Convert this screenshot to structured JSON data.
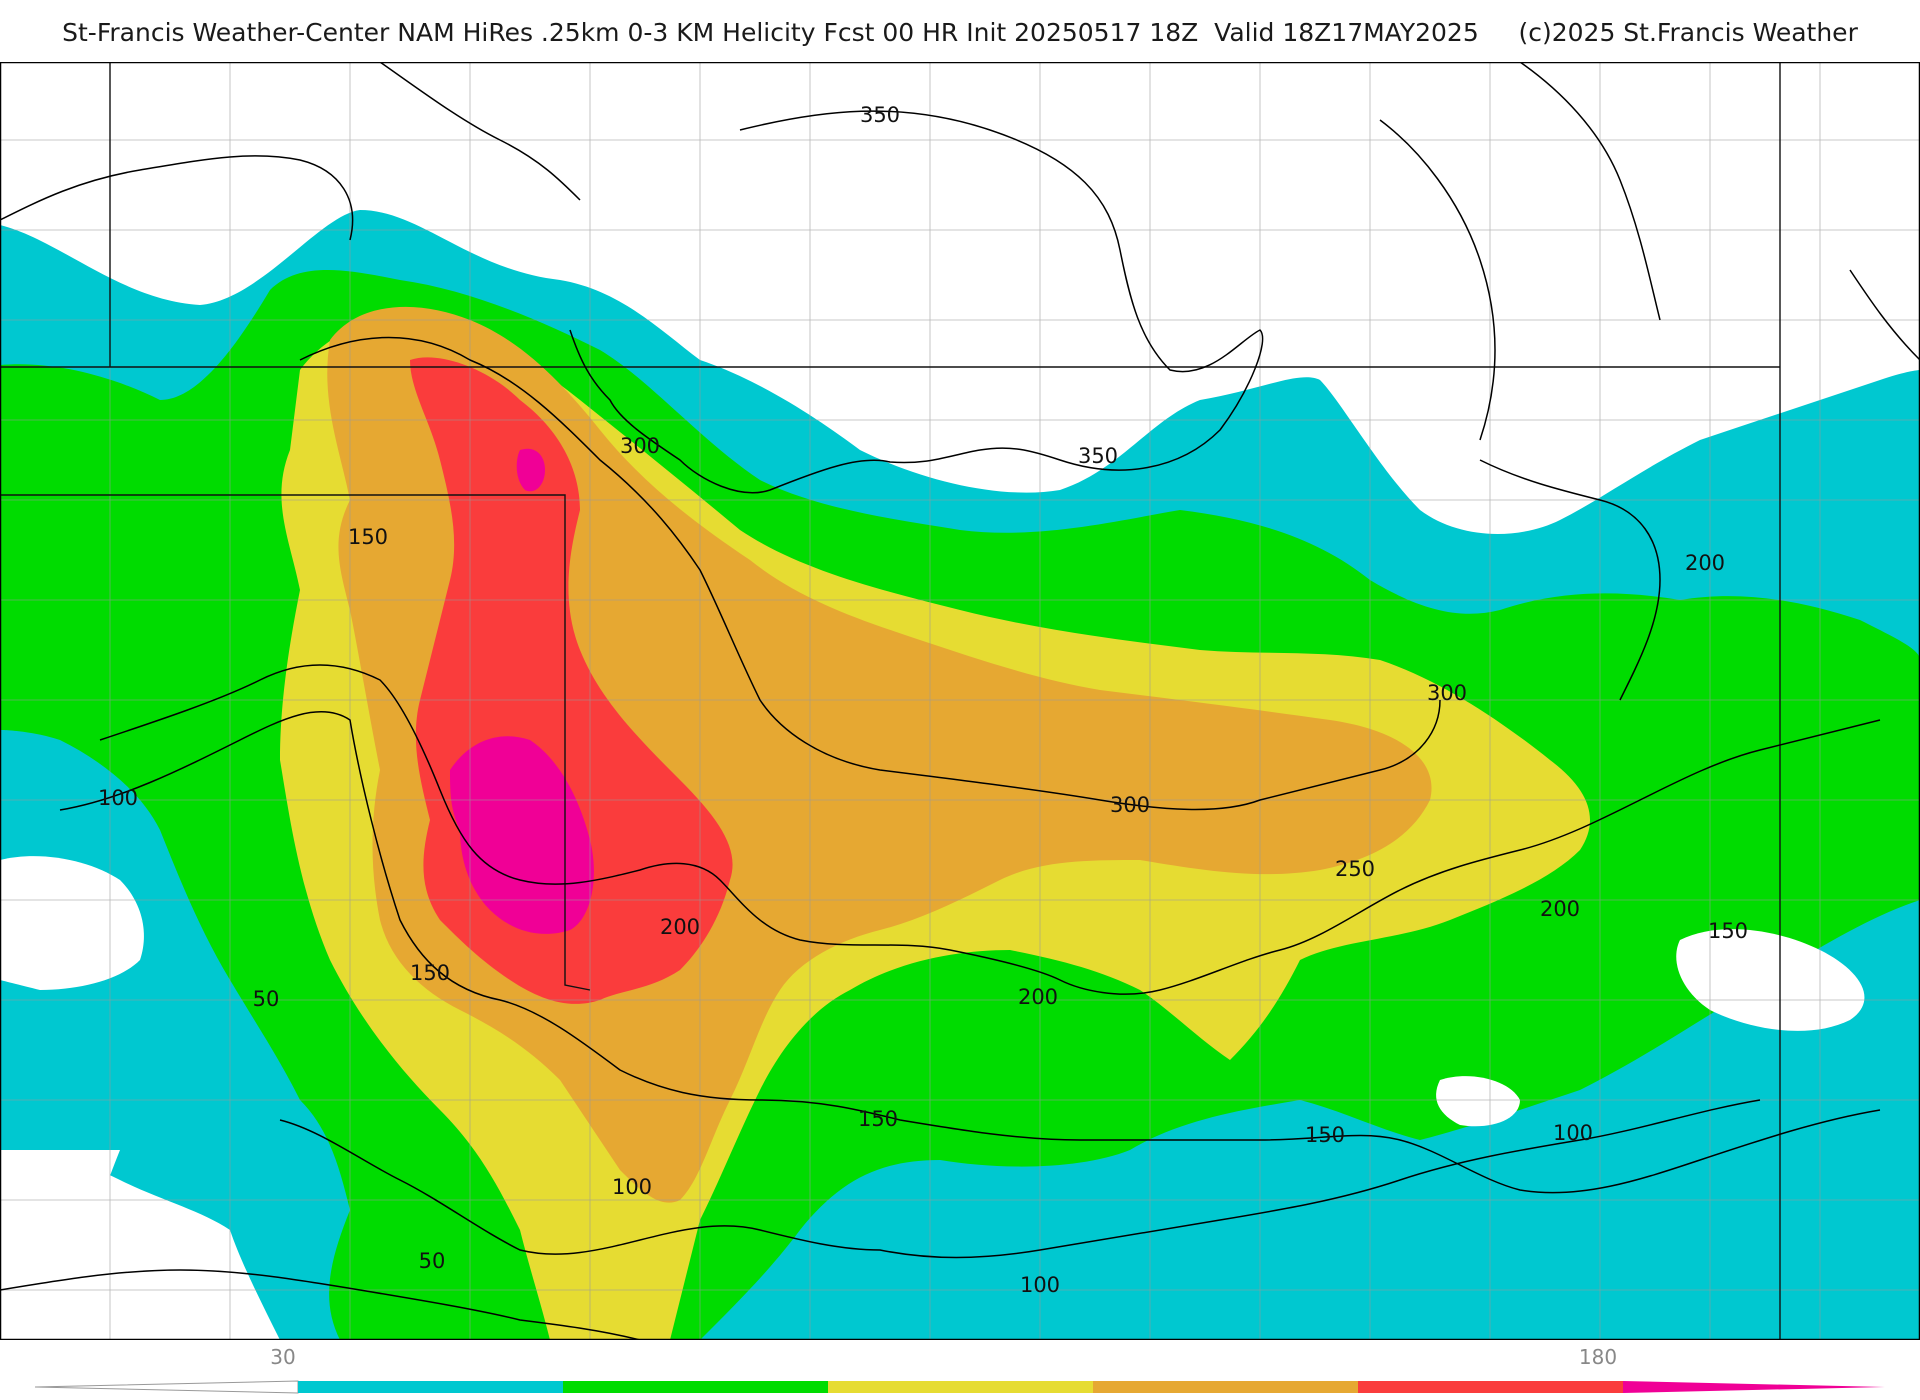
{
  "title": "St-Francis Weather-Center NAM HiRes .25km 0-3 KM Helicity Fcst 00 HR Init 20250517 18Z  Valid 18Z17MAY2025     (c)2025 St.Francis Weather",
  "colors": {
    "band_30": "#00c8d0",
    "band_60": "#00dc00",
    "band_90": "#e6dc32",
    "band_120": "#e6a832",
    "band_150": "#fa3c3c",
    "band_180": "#f00096"
  },
  "contour_labels": [
    "350",
    "350",
    "300",
    "300",
    "300",
    "250",
    "200",
    "200",
    "200",
    "200",
    "150",
    "150",
    "150",
    "150",
    "150",
    "100",
    "100",
    "100",
    "100",
    "50",
    "50"
  ],
  "legend": {
    "ticks": [
      "30",
      "180"
    ]
  }
}
